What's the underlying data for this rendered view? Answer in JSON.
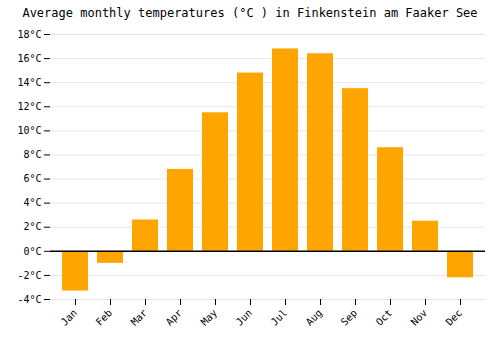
{
  "chart_data": {
    "type": "bar",
    "title": "Average monthly temperatures (°C ) in Finkenstein am Faaker See",
    "categories": [
      "Jan",
      "Feb",
      "Mar",
      "Apr",
      "May",
      "Jun",
      "Jul",
      "Aug",
      "Sep",
      "Oct",
      "Nov",
      "Dec"
    ],
    "values": [
      -3.3,
      -1.0,
      2.6,
      6.8,
      11.5,
      14.8,
      16.8,
      16.4,
      13.5,
      8.6,
      2.5,
      -2.2
    ],
    "color": "#FFA500",
    "ylim": [
      -4,
      18
    ],
    "yticks": [
      {
        "value": -4,
        "label": "-4°C"
      },
      {
        "value": -2,
        "label": "-2°C"
      },
      {
        "value": 0,
        "label": "0°C"
      },
      {
        "value": 2,
        "label": "2°C"
      },
      {
        "value": 4,
        "label": "4°C"
      },
      {
        "value": 6,
        "label": "6°C"
      },
      {
        "value": 8,
        "label": "8°C"
      },
      {
        "value": 10,
        "label": "10°C"
      },
      {
        "value": 12,
        "label": "12°C"
      },
      {
        "value": 14,
        "label": "14°C"
      },
      {
        "value": 16,
        "label": "16°C"
      },
      {
        "value": 18,
        "label": "18°C"
      }
    ],
    "grid": true
  }
}
